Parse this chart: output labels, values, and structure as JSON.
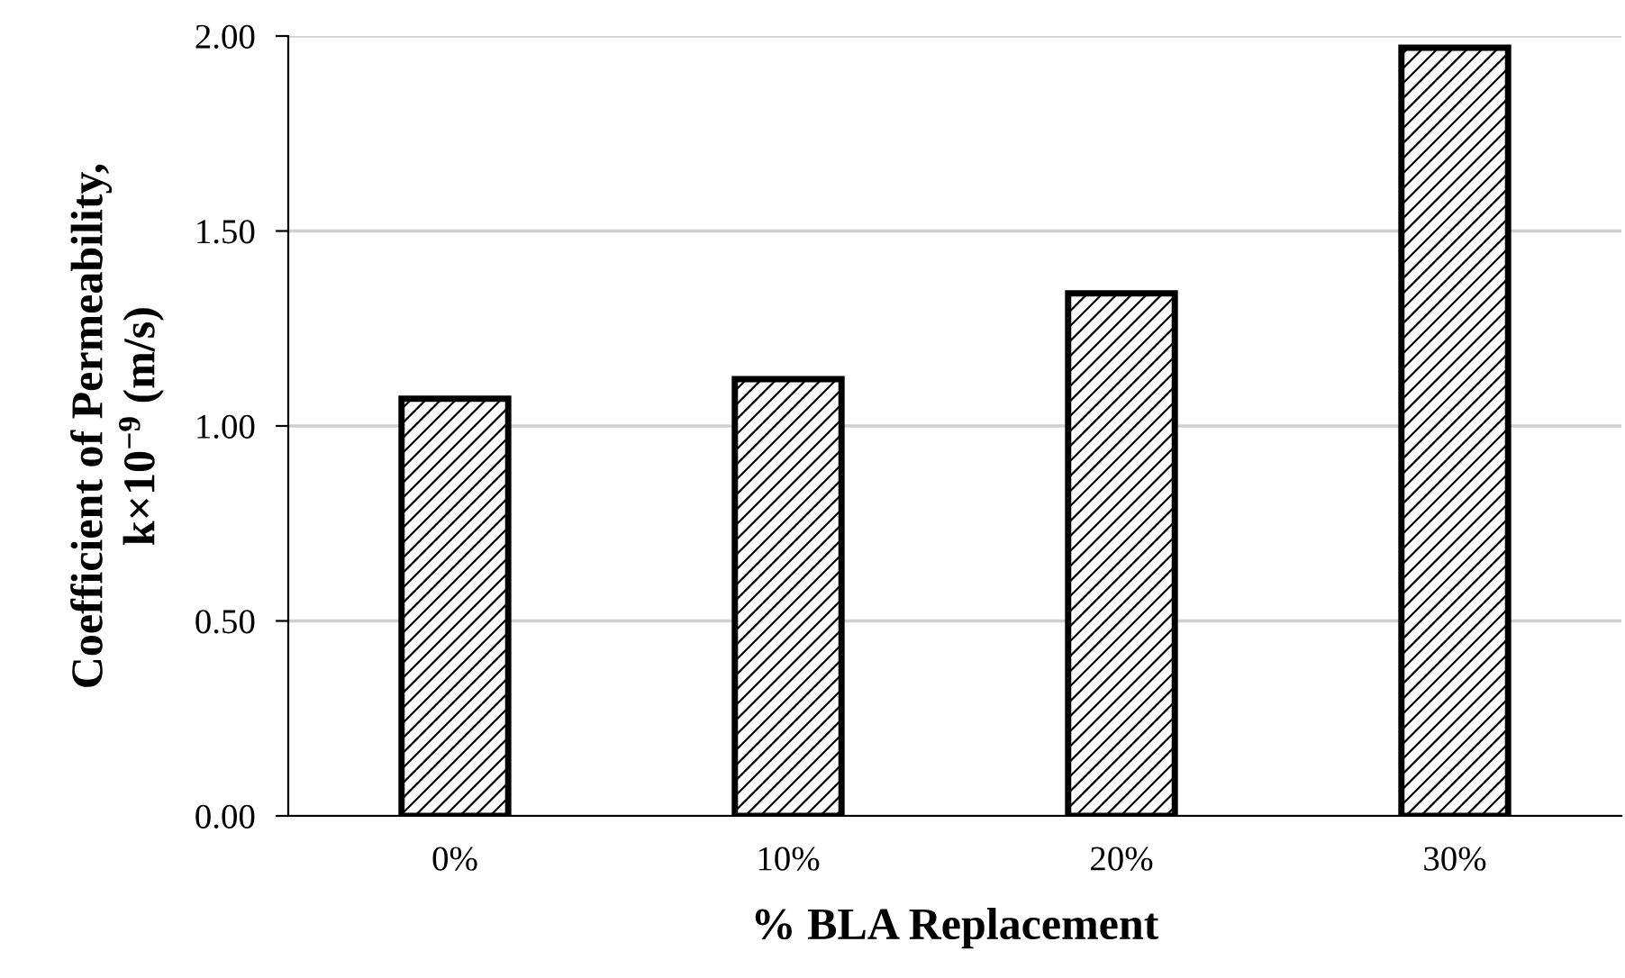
{
  "chart_data": {
    "type": "bar",
    "xlabel": "% BLA Replacement",
    "ylabel": "Coefficient of Permeability,\nk×10$^{−9}$ (m/s)",
    "categories": [
      "0%",
      "10%",
      "20%",
      "30%"
    ],
    "values": [
      1.07,
      1.12,
      1.34,
      1.97
    ],
    "color": "#000000",
    "ylim": [
      0,
      2
    ],
    "yticks": [
      {
        "value": 0,
        "label": "0.00"
      },
      {
        "value": 0.5,
        "label": "0.50"
      },
      {
        "value": 1,
        "label": "1.00"
      },
      {
        "value": 1.5,
        "label": "1.50"
      },
      {
        "value": 2,
        "label": "2.00"
      }
    ],
    "grid": "y",
    "legend": false
  }
}
